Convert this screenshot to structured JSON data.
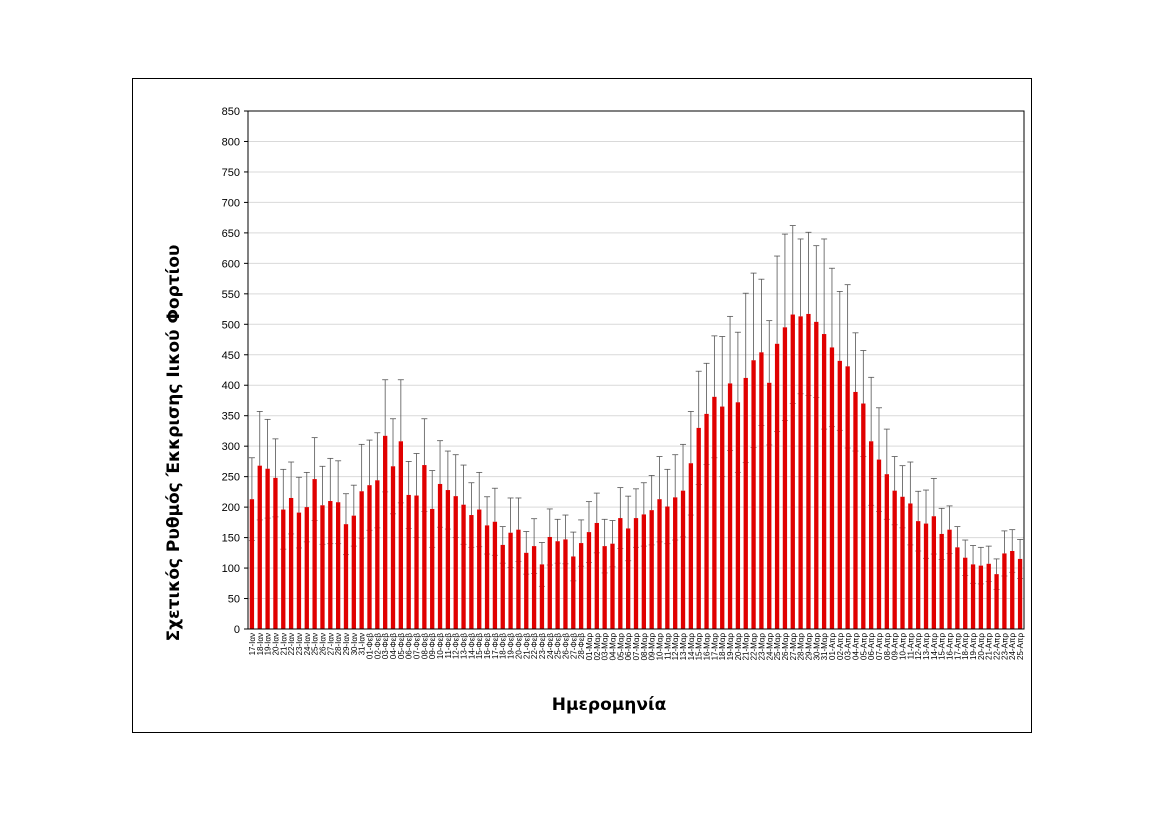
{
  "chart_data": {
    "type": "bar",
    "xlabel": "Ημερομηνία",
    "ylabel": "Σχετικός Ρυθμός Έκκρισης Ιικού Φορτίου",
    "ylim": [
      0,
      850
    ],
    "yticks": [
      0,
      50,
      100,
      150,
      200,
      250,
      300,
      350,
      400,
      450,
      500,
      550,
      600,
      650,
      700,
      750,
      800,
      850
    ],
    "grid": true,
    "bar_color": "#e00000",
    "error_bar_color": "#555555",
    "categories": [
      "17-Ιαν",
      "18-Ιαν",
      "19-Ιαν",
      "20-Ιαν",
      "21-Ιαν",
      "22-Ιαν",
      "23-Ιαν",
      "24-Ιαν",
      "25-Ιαν",
      "26-Ιαν",
      "27-Ιαν",
      "28-Ιαν",
      "29-Ιαν",
      "30-Ιαν",
      "31-Ιαν",
      "01-Φεβ",
      "02-Φεβ",
      "03-Φεβ",
      "04-Φεβ",
      "05-Φεβ",
      "06-Φεβ",
      "07-Φεβ",
      "08-Φεβ",
      "09-Φεβ",
      "10-Φεβ",
      "11-Φεβ",
      "12-Φεβ",
      "13-Φεβ",
      "14-Φεβ",
      "15-Φεβ",
      "16-Φεβ",
      "17-Φεβ",
      "18-Φεβ",
      "19-Φεβ",
      "20-Φεβ",
      "21-Φεβ",
      "22-Φεβ",
      "23-Φεβ",
      "24-Φεβ",
      "25-Φεβ",
      "26-Φεβ",
      "27-Φεβ",
      "28-Φεβ",
      "01-Μαρ",
      "02-Μαρ",
      "03-Μαρ",
      "04-Μαρ",
      "05-Μαρ",
      "06-Μαρ",
      "07-Μαρ",
      "08-Μαρ",
      "09-Μαρ",
      "10-Μαρ",
      "11-Μαρ",
      "12-Μαρ",
      "13-Μαρ",
      "14-Μαρ",
      "15-Μαρ",
      "16-Μαρ",
      "17-Μαρ",
      "18-Μαρ",
      "19-Μαρ",
      "20-Μαρ",
      "21-Μαρ",
      "22-Μαρ",
      "23-Μαρ",
      "24-Μαρ",
      "25-Μαρ",
      "26-Μαρ",
      "27-Μαρ",
      "28-Μαρ",
      "29-Μαρ",
      "30-Μαρ",
      "31-Μαρ",
      "01-Απρ",
      "02-Απρ",
      "03-Απρ",
      "04-Απρ",
      "05-Απρ",
      "06-Απρ",
      "07-Απρ",
      "08-Απρ",
      "09-Απρ",
      "10-Απρ",
      "11-Απρ",
      "12-Απρ",
      "13-Απρ",
      "14-Απρ",
      "15-Απρ",
      "16-Απρ",
      "17-Απρ",
      "18-Απρ",
      "19-Απρ",
      "20-Απρ",
      "21-Απρ",
      "22-Απρ",
      "23-Απρ",
      "24-Απρ",
      "25-Απρ"
    ],
    "values": [
      213,
      268,
      263,
      248,
      196,
      215,
      191,
      200,
      246,
      203,
      210,
      208,
      172,
      186,
      226,
      236,
      244,
      317,
      267,
      308,
      220,
      219,
      269,
      197,
      238,
      228,
      218,
      204,
      187,
      196,
      170,
      176,
      138,
      158,
      163,
      125,
      136,
      106,
      151,
      144,
      147,
      119,
      141,
      159,
      174,
      136,
      140,
      182,
      165,
      182,
      188,
      195,
      213,
      201,
      216,
      227,
      272,
      330,
      353,
      381,
      365,
      403,
      372,
      412,
      441,
      454,
      404,
      468,
      495,
      516,
      513,
      517,
      504,
      484,
      462,
      440,
      431,
      389,
      370,
      308,
      278,
      254,
      227,
      217,
      206,
      177,
      173,
      185,
      156,
      163,
      134,
      117,
      106,
      104,
      107,
      90,
      124,
      128,
      115
    ],
    "error_upper": [
      281,
      357,
      344,
      312,
      262,
      274,
      249,
      257,
      314,
      267,
      280,
      276,
      222,
      236,
      303,
      310,
      322,
      409,
      345,
      409,
      275,
      288,
      345,
      260,
      309,
      292,
      286,
      269,
      240,
      257,
      217,
      231,
      168,
      215,
      215,
      160,
      181,
      142,
      197,
      180,
      187,
      159,
      179,
      209,
      223,
      180,
      178,
      232,
      218,
      230,
      240,
      252,
      283,
      262,
      286,
      303,
      357,
      423,
      436,
      481,
      480,
      513,
      487,
      551,
      584,
      574,
      506,
      612,
      648,
      662,
      640,
      651,
      629,
      640,
      592,
      554,
      565,
      486,
      457,
      413,
      363,
      328,
      283,
      268,
      274,
      226,
      228,
      247,
      198,
      202,
      168,
      146,
      137,
      134,
      136,
      115,
      161,
      163,
      147
    ],
    "error_lower": [
      145,
      179,
      182,
      184,
      131,
      156,
      133,
      143,
      178,
      139,
      140,
      140,
      122,
      136,
      149,
      162,
      166,
      225,
      189,
      207,
      165,
      150,
      193,
      134,
      167,
      164,
      150,
      139,
      134,
      135,
      123,
      121,
      108,
      101,
      111,
      90,
      91,
      70,
      105,
      108,
      107,
      79,
      103,
      109,
      125,
      92,
      102,
      132,
      112,
      134,
      136,
      138,
      143,
      140,
      146,
      151,
      187,
      237,
      270,
      281,
      250,
      293,
      257,
      273,
      298,
      334,
      302,
      324,
      342,
      370,
      386,
      383,
      380,
      328,
      332,
      326,
      297,
      292,
      283,
      203,
      193,
      180,
      171,
      166,
      138,
      128,
      116,
      123,
      114,
      124,
      100,
      88,
      75,
      74,
      78,
      65,
      87,
      93,
      83
    ]
  }
}
